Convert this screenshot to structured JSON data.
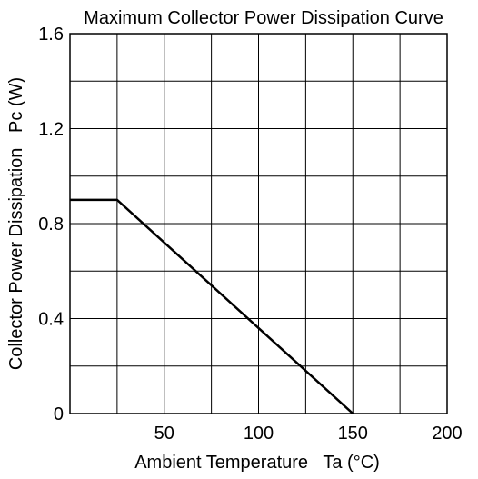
{
  "chart_data": {
    "type": "line",
    "title": "Maximum Collector Power Dissipation Curve",
    "xlabel": "Ambient Temperature   Ta (°C)",
    "ylabel": "Collector Power Dissipation   Pc (W)",
    "xlim": [
      0,
      200
    ],
    "ylim": [
      0,
      1.6
    ],
    "grid": true,
    "x_tick_values": [
      50,
      100,
      150,
      200
    ],
    "x_tick_labels": [
      "50",
      "100",
      "150",
      "200"
    ],
    "x_gridlines": [
      0,
      25,
      50,
      75,
      100,
      125,
      150,
      175,
      200
    ],
    "y_tick_values": [
      0,
      0.4,
      0.8,
      1.2,
      1.6
    ],
    "y_tick_labels": [
      "0",
      "0.4",
      "0.8",
      "1.2",
      "1.6"
    ],
    "y_gridlines": [
      0,
      0.2,
      0.4,
      0.6,
      0.8,
      1.0,
      1.2,
      1.4,
      1.6
    ],
    "series": [
      {
        "x": [
          0,
          25,
          150
        ],
        "y": [
          0.9,
          0.9,
          0
        ]
      }
    ],
    "colors": {
      "line": "#000000",
      "grid": "#000000",
      "background": "#ffffff"
    }
  }
}
